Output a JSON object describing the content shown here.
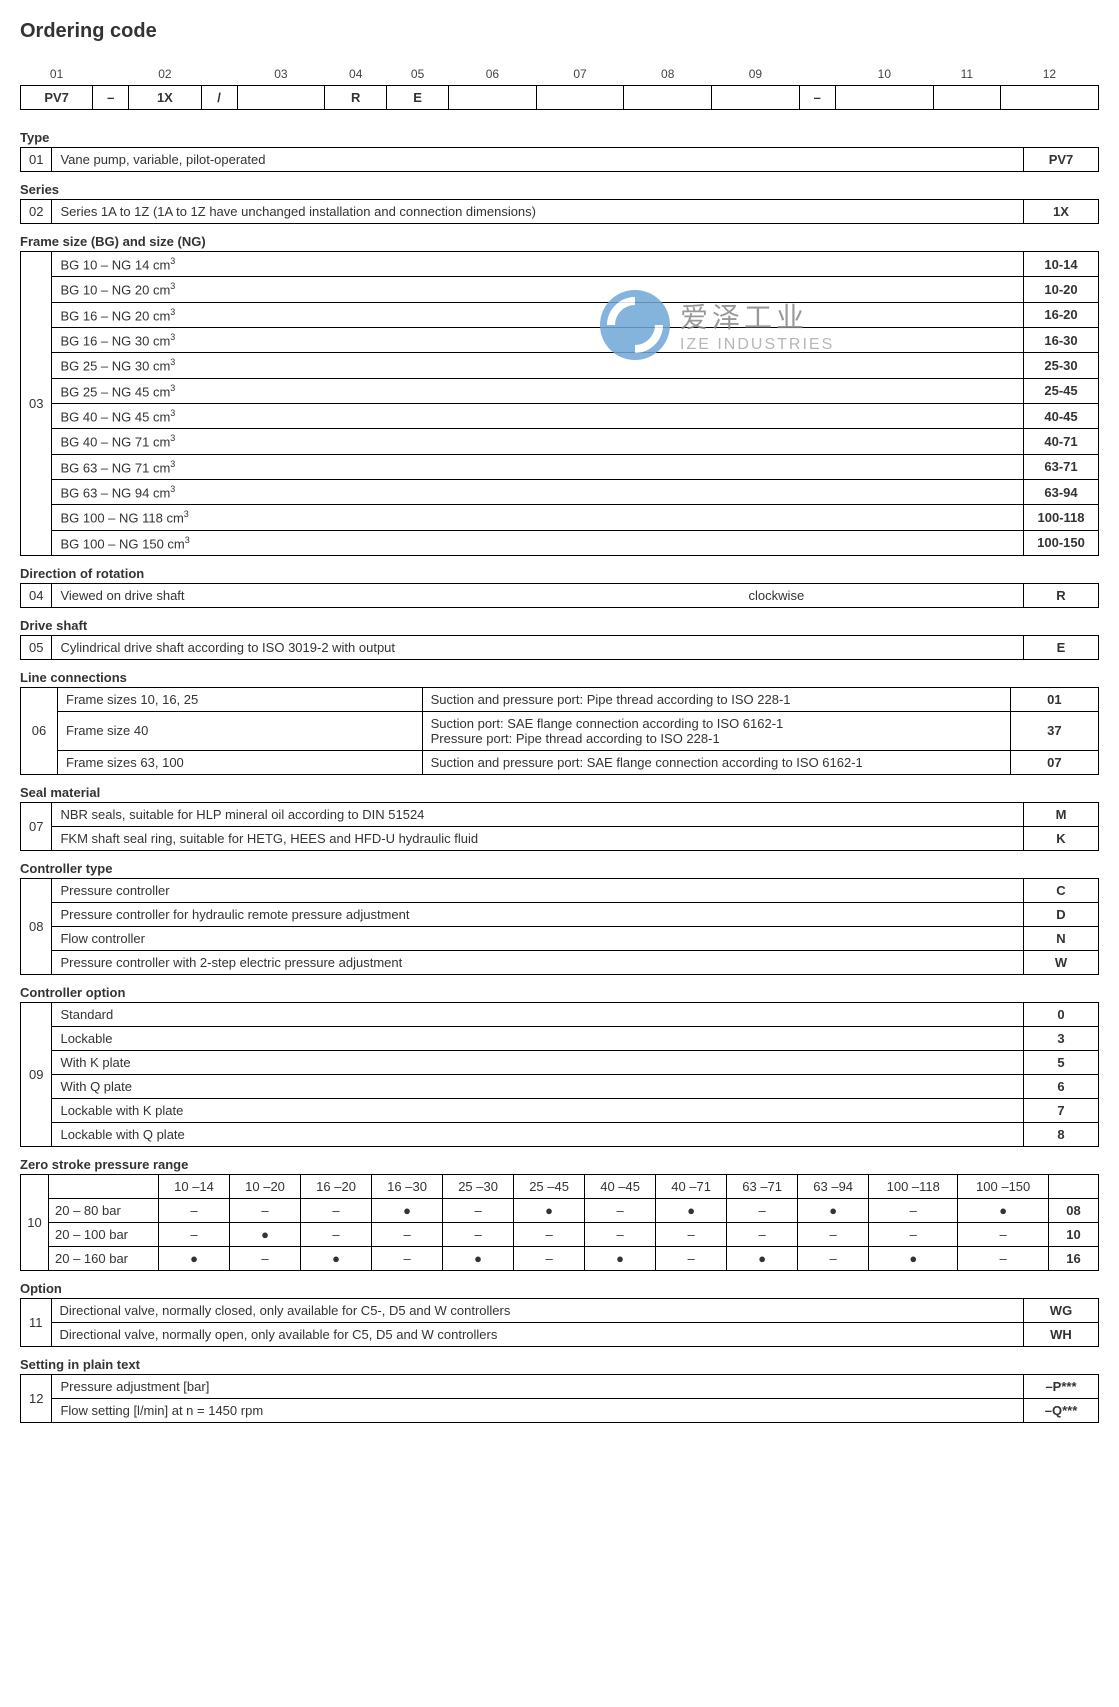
{
  "title": "Ordering code",
  "code_header": [
    "01",
    "",
    "02",
    "",
    "03",
    "04",
    "05",
    "06",
    "07",
    "08",
    "09",
    "",
    "10",
    "11",
    "12"
  ],
  "code_values": [
    "PV7",
    "–",
    "1X",
    "/",
    "",
    "R",
    "E",
    "",
    "",
    "",
    "",
    "–",
    "",
    "",
    ""
  ],
  "watermark": {
    "cn": "爱泽工业",
    "en": "IZE INDUSTRIES"
  },
  "sections": {
    "type": {
      "title": "Type",
      "rows": [
        {
          "num": "01",
          "desc": "Vane pump, variable, pilot-operated",
          "code": "PV7"
        }
      ]
    },
    "series": {
      "title": "Series",
      "rows": [
        {
          "num": "02",
          "desc": "Series 1A to 1Z (1A to 1Z have unchanged installation and connection dimensions)",
          "code": "1X"
        }
      ]
    },
    "frame": {
      "title": "Frame size (BG) and size (NG)",
      "rows": [
        {
          "num": "03",
          "desc": "BG 10 – NG 14 cm",
          "sup": "3",
          "code": "10-14"
        },
        {
          "num": "",
          "desc": "BG 10 – NG 20 cm",
          "sup": "3",
          "code": "10-20"
        },
        {
          "num": "",
          "desc": "BG 16 – NG 20 cm",
          "sup": "3",
          "code": "16-20"
        },
        {
          "num": "",
          "desc": "BG 16 – NG 30 cm",
          "sup": "3",
          "code": "16-30"
        },
        {
          "num": "",
          "desc": "BG 25 – NG 30 cm",
          "sup": "3",
          "code": "25-30"
        },
        {
          "num": "",
          "desc": "BG 25 – NG 45 cm",
          "sup": "3",
          "code": "25-45"
        },
        {
          "num": "",
          "desc": "BG 40 – NG 45 cm",
          "sup": "3",
          "code": "40-45"
        },
        {
          "num": "",
          "desc": "BG 40 – NG 71 cm",
          "sup": "3",
          "code": "40-71"
        },
        {
          "num": "",
          "desc": "BG 63 – NG 71 cm",
          "sup": "3",
          "code": "63-71"
        },
        {
          "num": "",
          "desc": "BG 63 – NG 94 cm",
          "sup": "3",
          "code": "63-94"
        },
        {
          "num": "",
          "desc": "BG 100 – NG 118 cm",
          "sup": "3",
          "code": "100-118"
        },
        {
          "num": "",
          "desc": "BG 100 – NG 150 cm",
          "sup": "3",
          "code": "100-150"
        }
      ]
    },
    "rotation": {
      "title": "Direction of rotation",
      "rows": [
        {
          "num": "04",
          "desc": "Viewed on drive shaft",
          "mid": "clockwise",
          "code": "R"
        }
      ]
    },
    "shaft": {
      "title": "Drive shaft",
      "rows": [
        {
          "num": "05",
          "desc": "Cylindrical drive shaft according to ISO 3019-2 with output",
          "code": "E"
        }
      ]
    },
    "line": {
      "title": "Line connections",
      "rows": [
        {
          "num": "06",
          "desc": "Frame sizes 10, 16, 25",
          "mid": "Suction and pressure port: Pipe thread according to ISO 228-1",
          "code": "01"
        },
        {
          "num": "",
          "desc": "Frame size 40",
          "mid": "Suction port: SAE flange connection according to ISO 6162-1\nPressure port: Pipe thread according to ISO 228-1",
          "code": "37"
        },
        {
          "num": "",
          "desc": "Frame sizes 63, 100",
          "mid": "Suction and pressure port: SAE flange connection according to ISO 6162-1",
          "code": "07"
        }
      ]
    },
    "seal": {
      "title": "Seal material",
      "rows": [
        {
          "num": "07",
          "desc": "NBR seals, suitable for HLP mineral oil according to DIN 51524",
          "code": "M"
        },
        {
          "num": "",
          "desc": "FKM shaft seal ring, suitable for HETG, HEES and HFD-U hydraulic fluid",
          "code": "K"
        }
      ]
    },
    "controller_type": {
      "title": "Controller type",
      "rows": [
        {
          "num": "08",
          "desc": "Pressure controller",
          "code": "C"
        },
        {
          "num": "",
          "desc": "Pressure controller for hydraulic remote pressure adjustment",
          "code": "D"
        },
        {
          "num": "",
          "desc": "Flow controller",
          "code": "N"
        },
        {
          "num": "",
          "desc": "Pressure controller with 2-step electric pressure adjustment",
          "code": "W"
        }
      ]
    },
    "controller_option": {
      "title": "Controller option",
      "rows": [
        {
          "num": "09",
          "desc": "Standard",
          "code": "0"
        },
        {
          "num": "",
          "desc": "Lockable",
          "code": "3"
        },
        {
          "num": "",
          "desc": "With K plate",
          "code": "5"
        },
        {
          "num": "",
          "desc": "With Q plate",
          "code": "6"
        },
        {
          "num": "",
          "desc": "Lockable with K plate",
          "code": "7"
        },
        {
          "num": "",
          "desc": "Lockable with Q plate",
          "code": "8"
        }
      ]
    },
    "zero": {
      "title": "Zero stroke pressure range",
      "num": "10",
      "cols": [
        "10 –14",
        "10 –20",
        "16 –20",
        "16 –30",
        "25 –30",
        "25 –45",
        "40 –45",
        "40 –71",
        "63 –71",
        "63 –94",
        "100 –118",
        "100 –150"
      ],
      "rows": [
        {
          "label": "20 – 80 bar",
          "vals": [
            "–",
            "–",
            "–",
            "●",
            "–",
            "●",
            "–",
            "●",
            "–",
            "●",
            "–",
            "●"
          ],
          "code": "08"
        },
        {
          "label": "20 – 100 bar",
          "vals": [
            "–",
            "●",
            "–",
            "–",
            "–",
            "–",
            "–",
            "–",
            "–",
            "–",
            "–",
            "–"
          ],
          "code": "10"
        },
        {
          "label": "20 – 160 bar",
          "vals": [
            "●",
            "–",
            "●",
            "–",
            "●",
            "–",
            "●",
            "–",
            "●",
            "–",
            "●",
            "–"
          ],
          "code": "16"
        }
      ]
    },
    "option": {
      "title": "Option",
      "rows": [
        {
          "num": "11",
          "desc": "Directional valve, normally closed, only available for C5-, D5 and W controllers",
          "code": "WG"
        },
        {
          "num": "",
          "desc": "Directional valve, normally open, only available for C5, D5 and W controllers",
          "code": "WH"
        }
      ]
    },
    "setting": {
      "title": "Setting in plain text",
      "rows": [
        {
          "num": "12",
          "desc": "Pressure adjustment [bar]",
          "code": "–P***"
        },
        {
          "num": "",
          "desc": "Flow setting [l/min] at n = 1450 rpm",
          "code": "–Q***"
        }
      ]
    }
  }
}
